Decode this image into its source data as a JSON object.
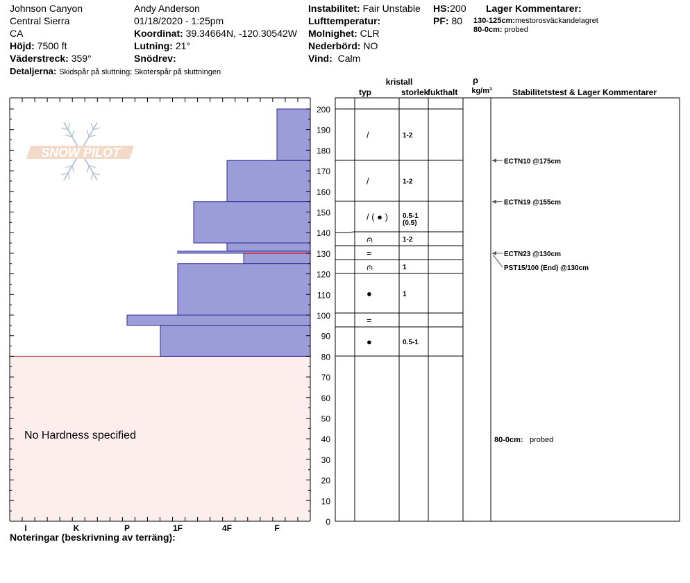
{
  "header": {
    "location": "Johnson Canyon",
    "region": "Central Sierra",
    "state": "CA",
    "elevation_label": "Höjd:",
    "elevation_value": "7500 ft",
    "aspect_label": "Väderstreck:",
    "aspect_value": "359°",
    "details_label": "Detaljerna:",
    "details_value": "Skidspår på sluttning;  Skoterspår på sluttningen",
    "observer": "Andy Anderson",
    "datetime": "01/18/2020 - 1:25pm",
    "coord_label": "Koordinat:",
    "coord_value": "39.34664N, -120.30542W",
    "slope_label": "Lutning:",
    "slope_value": "21°",
    "drift_label": "Snödrev:",
    "drift_value": "",
    "instability_label": "Instabilitet:",
    "instability_value": "Fair Unstable",
    "airtemp_label": "Lufttemperatur:",
    "airtemp_value": "",
    "cloud_label": "Molnighet:",
    "cloud_value": "CLR",
    "precip_label": "Nederbörd:",
    "precip_value": "NO",
    "wind_label": "Vind:",
    "wind_value": "Calm",
    "hs_label": "HS:",
    "hs_value": "200",
    "pf_label": "PF:",
    "pf_value": "80",
    "layer_comments_title": "Lager Kommentarer:",
    "layer_comments": [
      {
        "range": "130-125cm:",
        "text": "mestorosväckandelagret"
      },
      {
        "range": "80-0cm:",
        "text": "probed"
      }
    ]
  },
  "columns": {
    "crystal": "kristall",
    "type": "typ",
    "size": "storlek",
    "moisture": "fukthalt",
    "rho": "ρ",
    "density_unit": "kg/m³",
    "stability": "Stabilitetstest & Lager Kommentarer"
  },
  "no_hardness": "No Hardness specified",
  "notes_label": "Noteringar (beskrivning av terräng):",
  "logo_text": "SNOW PILOT",
  "chart_data": {
    "type": "bar",
    "orientation": "horizontal",
    "xlabel": "",
    "ylabel": "",
    "x_tick_labels": [
      "I",
      "K",
      "P",
      "1F",
      "4F",
      "F"
    ],
    "y_ticks": [
      0,
      10,
      20,
      30,
      40,
      50,
      60,
      70,
      80,
      90,
      100,
      110,
      120,
      130,
      140,
      150,
      160,
      170,
      180,
      190,
      200
    ],
    "ylim": [
      0,
      200
    ],
    "hardness_layers": [
      {
        "top": 200,
        "bottom": 175,
        "hardness": "F"
      },
      {
        "top": 175,
        "bottom": 155,
        "hardness": "4F"
      },
      {
        "top": 155,
        "bottom": 135,
        "hardness": "1F+"
      },
      {
        "top": 135,
        "bottom": 131,
        "hardness": "4F"
      },
      {
        "top": 131,
        "bottom": 130,
        "hardness": "1F"
      },
      {
        "top": 130,
        "bottom": 125,
        "hardness": "4F-"
      },
      {
        "top": 125,
        "bottom": 100,
        "hardness": "1F"
      },
      {
        "top": 100,
        "bottom": 95,
        "hardness": "P"
      },
      {
        "top": 95,
        "bottom": 80,
        "hardness": "P+"
      }
    ],
    "weak_layer_cm": 130,
    "grain_layers": [
      {
        "top": 200,
        "bottom": 175,
        "type": "/",
        "size": "1-2"
      },
      {
        "top": 175,
        "bottom": 155,
        "type": "/",
        "size": "1-2"
      },
      {
        "top": 155,
        "bottom": 140,
        "type": "/ ( ● )",
        "size": "0.5-1",
        "size2": "(0.5)"
      },
      {
        "top": 140,
        "bottom": 134,
        "type": "⩀",
        "size": "1-2"
      },
      {
        "top": 134,
        "bottom": 127,
        "type": "=",
        "size": ""
      },
      {
        "top": 127,
        "bottom": 120,
        "type": "⩀",
        "size": "1"
      },
      {
        "top": 120,
        "bottom": 101,
        "type": "●",
        "size": "1"
      },
      {
        "top": 101,
        "bottom": 94,
        "type": "=",
        "size": ""
      },
      {
        "top": 94,
        "bottom": 80,
        "type": "●",
        "size": "0.5-1"
      }
    ],
    "stability_tests": [
      {
        "depth": 175,
        "label": "ECTN10 @175cm"
      },
      {
        "depth": 155,
        "label": "ECTN19 @155cm"
      },
      {
        "depth": 130,
        "label": "ECTN23 @130cm"
      },
      {
        "depth": 130,
        "label": "PST15/100 (End) @130cm"
      }
    ],
    "layer_notes": [
      {
        "depth": 40,
        "range": "80-0cm:",
        "text": "probed"
      }
    ]
  }
}
